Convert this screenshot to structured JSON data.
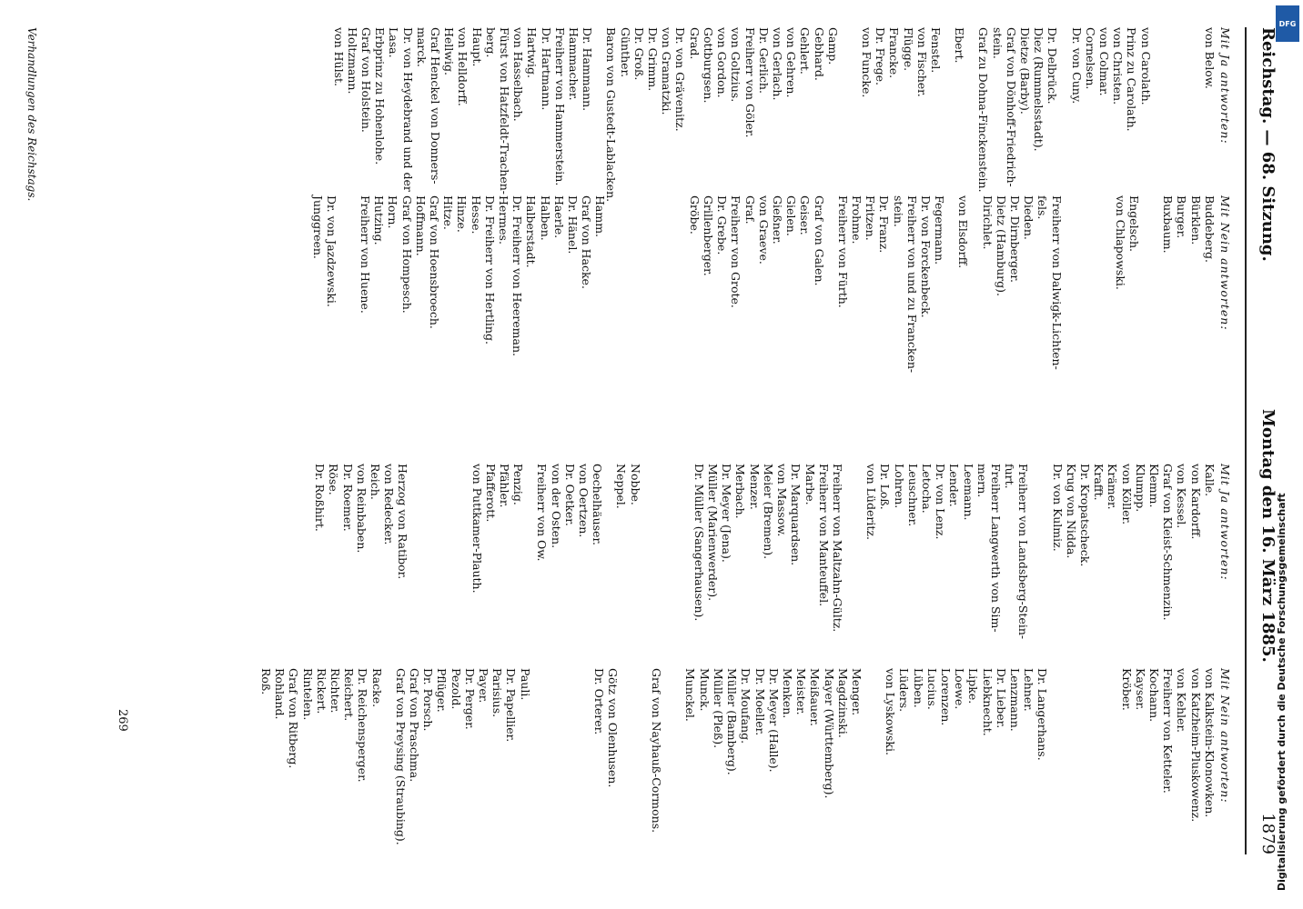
{
  "header": {
    "left": "Reichstag. — 68. Sitzung.",
    "center": "Montag den 16. März 1885.",
    "page": "1879"
  },
  "sidebar": {
    "credit": "Digitalisierung gefördert durch die Deutsche Forschungsgemeinschaft",
    "logo": "DFG"
  },
  "footnote": "Verhandlungen des Reichstags.",
  "signature": "269",
  "columns": [
    {
      "heading": "Mit Ja antworten:",
      "items": [
        "von Below.",
        "",
        "",
        "",
        "",
        "",
        "von Carolath.",
        "Prinz zu Carolath.",
        "von Christen.",
        "von Colmar.",
        "Cornelsen.",
        "Dr. von Cuny.",
        "",
        "Dr. Delbrück.",
        "Diez (Rummelsstadt).",
        "Dietze (Barby).",
        "Graf von Dönhoff-Friedrich-",
        "stein.",
        "Graf zu Dohna-Finckenstein.",
        "",
        "Ebert.",
        "",
        "Fenstel.",
        "von Fischer.",
        "Flügge.",
        "Francke.",
        "Dr. Frege.",
        "von Funcke.",
        "",
        "",
        "Gamp.",
        "Gebhard.",
        "Gehlert.",
        "von Gehren.",
        "von Gerlach.",
        "Dr. Gerlich.",
        "Freiherr von Göler.",
        "von Goltzius.",
        "von Gordon.",
        "Gottburgsen.",
        "Grad.",
        "Dr. von Grävenitz.",
        "von Gramatzki.",
        "Dr. Grimm.",
        "Dr. Groß.",
        "Günther.",
        "Baron von Gustedt-Lablacken.",
        "",
        "Dr. Hammann.",
        "Hammacher.",
        "Freiherr von Hammerstein.",
        "Dr. Hartmann.",
        "Hartwig.",
        "von Hasselbach.",
        "Fürst von Hatzfeldt-Trachen-",
        "berg.",
        "Haupt.",
        "von Helldorff.",
        "Hellwig.",
        "Graf Henckel von Donners-",
        "marck.",
        "Dr. von Heydebrand und der",
        "Lasa.",
        "Erbprinz zu Hohenlohe.",
        "Graf von Holstein.",
        "Holtzmann.",
        "von Hülst."
      ]
    },
    {
      "heading": "Mit Nein antworten:",
      "items": [
        "Buddeberg.",
        "Bürklen.",
        "Burger.",
        "Buxbaum.",
        "",
        "",
        "Engelsch.",
        "von Chlapowski.",
        "",
        "",
        "",
        "",
        "",
        "Freiherr von Dalwigk-Lichten-",
        "fels.",
        "Dieden.",
        "Dr. Dirnberger.",
        "Dietz (Hamburg).",
        "Dirichlet.",
        "",
        "von Elsdorff.",
        "",
        "Fegermann.",
        "Dr. von Forckenbeck.",
        "Freiherr von und zu Francken-",
        "stein.",
        "Dr. Franz.",
        "Fritzen.",
        "Frohme.",
        "Freiherr von Fürth.",
        "",
        "Graf von Galen.",
        "Geiser.",
        "Gielen.",
        "Gießner.",
        "von Graeve.",
        "Graf.",
        "Freiherr von Grote.",
        "Dr. Grebe.",
        "Grillenberger.",
        "Gröbe.",
        "",
        "",
        "",
        "",
        "",
        "",
        "",
        "",
        "Hamm.",
        "Graf von Hacke.",
        "Dr. Hänel.",
        "Haerle.",
        "Halben.",
        "Halberstadt.",
        "Dr. Freiherr von Heereman.",
        "Hermes.",
        "Dr. Freiherr von Hertling.",
        "Hesse.",
        "Hinze.",
        "Hitze.",
        "Graf von Hoensbroech.",
        "Hoffmann.",
        "Graf von Hompesch.",
        "Horn.",
        "Hutzing.",
        "Freiherr von Huene.",
        "",
        "",
        "Dr. von Jazdzewski.",
        "Junggreen."
      ]
    },
    {
      "heading": "Mit Ja antworten:",
      "items": [
        "Kalle.",
        "von Kardorff.",
        "von Kessel.",
        "Graf von Kleist-Schmenzin.",
        "Klemm.",
        "Klumpp.",
        "von Köller.",
        "Krämer.",
        "Krafft.",
        "Dr. Kropatscheck.",
        "Krug von Nidda.",
        "Dr. von Kulmiz.",
        "",
        "",
        "Freiherr von Landsberg-Stein-",
        "furt.",
        "Freiherr Langwerth von Sim-",
        "mern.",
        "Leemann.",
        "Lender.",
        "Dr. von Lenz.",
        "Letocha.",
        "Leuschner.",
        "Lohren.",
        "Dr. Loß.",
        "von Lüderitz.",
        "",
        "",
        "Freiherr von Maltzahn-Gültz.",
        "Freiherr von Manteuffel.",
        "Marbe.",
        "Dr. Marquardsen.",
        "von Massow.",
        "Meier (Bremen).",
        "Menzer.",
        "Merbach.",
        "Dr. Meyer (Jena).",
        "Müller (Marienwerder).",
        "Dr. Müller (Sangerhausen).",
        "",
        "",
        "",
        "",
        "",
        "Nobbe.",
        "Neppel.",
        "",
        "Oechelhäuser.",
        "von Oertzen.",
        "Dr. Oetker.",
        "von der Osten.",
        "Freiherr von Ow.",
        "",
        "Penzig.",
        "Pfähler.",
        "Pfafferott.",
        "von Puttkamer-Plauth.",
        "",
        "",
        "",
        "",
        "",
        "",
        "Herzog von Ratibor.",
        "von Redecker.",
        "Reich.",
        "von Reinbaben.",
        "Dr. Roemer.",
        "Röse.",
        "Dr. Roßhirt."
      ]
    },
    {
      "heading": "Mit Nein antworten:",
      "items": [
        "von Kalkstein-Klonowken.",
        "von Katzheim-Pluskowenz.",
        "von Kehler.",
        "Freiherr von Ketteler.",
        "Kochann.",
        "Kayser.",
        "Kröber.",
        "",
        "",
        "",
        "",
        "",
        "",
        "",
        "Dr. Langerhans.",
        "Lehner.",
        "Lenzmann.",
        "Dr. Lieber.",
        "Liebknecht.",
        "Lipke.",
        "Loewe.",
        "Lorenzen.",
        "Lucius.",
        "Lüben.",
        "Lüders.",
        "von Lyskowski.",
        "",
        "",
        "Menger.",
        "Magdzinski.",
        "Mayer (Württemberg).",
        "Meißauer.",
        "Meister.",
        "Menken.",
        "Dr. Meyer (Halle).",
        "Dr. Moeller.",
        "Dr. Moufang.",
        "Müller (Bamberg).",
        "Müller (Pleß).",
        "Munck.",
        "Munckel.",
        "",
        "",
        "Graf von Nayhauß-Cormons.",
        "",
        "",
        "",
        "Götz von Olenhusen.",
        "Dr. Orterer.",
        "",
        "",
        "",
        "",
        "",
        "",
        "Pauli.",
        "Dr. Papellier.",
        "Parisius.",
        "Payer.",
        "Dr. Perger.",
        "Pezold.",
        "Pflüger.",
        "Dr. Porsch.",
        "Graf von Praschma.",
        "Graf von Preysing (Straubing).",
        "",
        "Racke.",
        "Dr. Reichensperger.",
        "Reichert.",
        "Richter.",
        "Rickert.",
        "Rintelen.",
        "Graf von Ritberg.",
        "Rohland.",
        "Roß."
      ]
    }
  ]
}
